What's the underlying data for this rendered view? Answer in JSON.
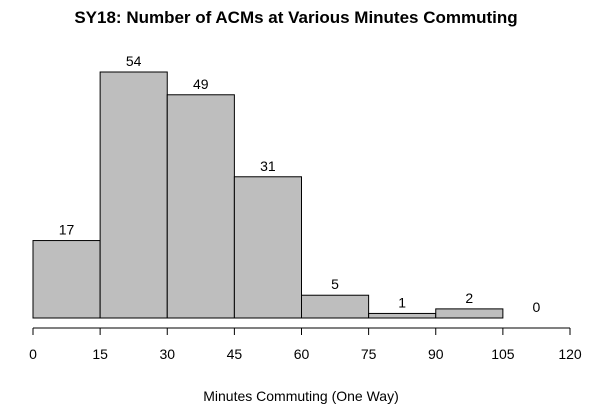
{
  "chart_data": {
    "type": "bar",
    "title": "SY18: Number of ACMs at Various Minutes Commuting",
    "xlabel": "Minutes Commuting (One Way)",
    "ylabel": "",
    "bins": [
      [
        0,
        15
      ],
      [
        15,
        30
      ],
      [
        30,
        45
      ],
      [
        45,
        60
      ],
      [
        60,
        75
      ],
      [
        75,
        90
      ],
      [
        90,
        105
      ],
      [
        105,
        120
      ]
    ],
    "values": [
      17,
      54,
      49,
      31,
      5,
      1,
      2,
      0
    ],
    "data_labels": [
      "17",
      "54",
      "49",
      "31",
      "5",
      "1",
      "2",
      "0"
    ],
    "x_ticks": [
      "0",
      "15",
      "30",
      "45",
      "60",
      "75",
      "90",
      "105",
      "120"
    ],
    "xlim": [
      0,
      120
    ],
    "ylim": [
      0,
      54
    ],
    "grid": false,
    "colors": {
      "bar_fill": "#bebebe",
      "bar_stroke": "#000000"
    }
  }
}
